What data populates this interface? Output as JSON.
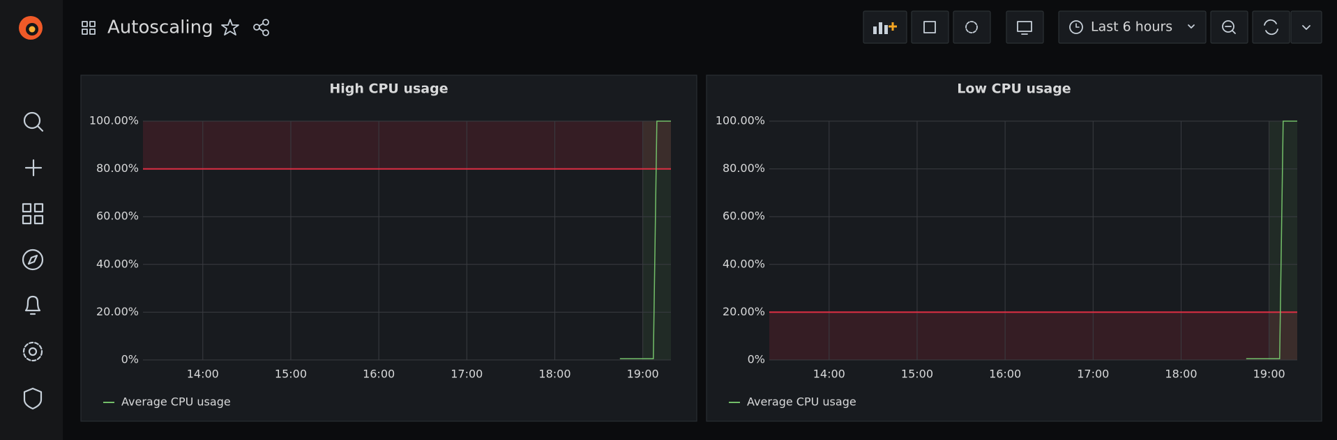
{
  "header": {
    "title": "Autoscaling",
    "time_range": "Last 6 hours"
  },
  "chart_data": [
    {
      "type": "line",
      "title": "High CPU usage",
      "x": [
        18.74,
        19.12,
        19.16,
        19.32
      ],
      "series": [
        {
          "name": "Average CPU usage",
          "color": "#73bf69",
          "values": [
            0.5,
            0.5,
            100,
            100
          ]
        }
      ],
      "xlim": [
        13.32,
        19.32
      ],
      "xticks": [
        {
          "value": 14,
          "label": "14:00"
        },
        {
          "value": 15,
          "label": "15:00"
        },
        {
          "value": 16,
          "label": "16:00"
        },
        {
          "value": 17,
          "label": "17:00"
        },
        {
          "value": 18,
          "label": "18:00"
        },
        {
          "value": 19,
          "label": "19:00"
        }
      ],
      "ylim": [
        0,
        100
      ],
      "yticks": [
        {
          "value": 0,
          "label": "0%"
        },
        {
          "value": 20,
          "label": "20.00%"
        },
        {
          "value": 40,
          "label": "40.00%"
        },
        {
          "value": 60,
          "label": "60.00%"
        },
        {
          "value": 80,
          "label": "80.00%"
        },
        {
          "value": 100,
          "label": "100.00%"
        }
      ],
      "threshold": {
        "value": 80,
        "op": "gt",
        "color": "#e02f44"
      },
      "shaded_region": {
        "x": [
          19.0,
          19.32
        ],
        "color": "#73bf69"
      },
      "grid": true
    },
    {
      "type": "line",
      "title": "Low CPU usage",
      "x": [
        18.74,
        19.12,
        19.16,
        19.32
      ],
      "series": [
        {
          "name": "Average CPU usage",
          "color": "#73bf69",
          "values": [
            0.5,
            0.5,
            100,
            100
          ]
        }
      ],
      "xlim": [
        13.32,
        19.32
      ],
      "xticks": [
        {
          "value": 14,
          "label": "14:00"
        },
        {
          "value": 15,
          "label": "15:00"
        },
        {
          "value": 16,
          "label": "16:00"
        },
        {
          "value": 17,
          "label": "17:00"
        },
        {
          "value": 18,
          "label": "18:00"
        },
        {
          "value": 19,
          "label": "19:00"
        }
      ],
      "ylim": [
        0,
        100
      ],
      "yticks": [
        {
          "value": 0,
          "label": "0%"
        },
        {
          "value": 20,
          "label": "20.00%"
        },
        {
          "value": 40,
          "label": "40.00%"
        },
        {
          "value": 60,
          "label": "60.00%"
        },
        {
          "value": 80,
          "label": "80.00%"
        },
        {
          "value": 100,
          "label": "100.00%"
        }
      ],
      "threshold": {
        "value": 20,
        "op": "lt",
        "color": "#e02f44"
      },
      "shaded_region": {
        "x": [
          19.0,
          19.32
        ],
        "color": "#73bf69"
      },
      "grid": true
    }
  ]
}
